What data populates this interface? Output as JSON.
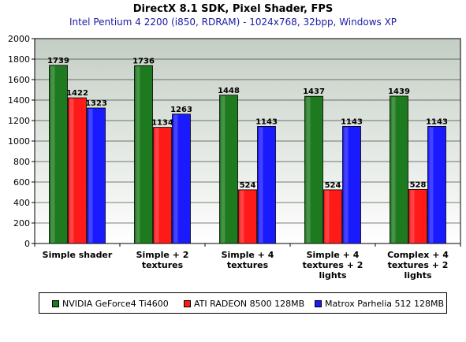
{
  "chart_data": {
    "type": "bar",
    "title": "DirectX 8.1 SDK, Pixel Shader, FPS",
    "subtitle": "Intel Pentium 4 2200 (i850, RDRAM) - 1024x768, 32bpp, Windows XP",
    "categories": [
      [
        "Simple shader"
      ],
      [
        "Simple + 2",
        "textures"
      ],
      [
        "Simple + 4",
        "textures"
      ],
      [
        "Simple + 4",
        "textures + 2",
        "lights"
      ],
      [
        "Complex + 4",
        "textures + 2",
        "lights"
      ]
    ],
    "series": [
      {
        "name": "NVIDIA GeForce4 Ti4600",
        "color": "#1e7a1e",
        "values": [
          1739,
          1736,
          1448,
          1437,
          1439
        ]
      },
      {
        "name": "ATI RADEON 8500 128MB",
        "color": "#ff1a1a",
        "values": [
          1422,
          1134,
          524,
          524,
          528
        ]
      },
      {
        "name": "Matrox Parhelia 512 128MB",
        "color": "#1a1aff",
        "values": [
          1323,
          1263,
          1143,
          1143,
          1143
        ]
      }
    ],
    "ylim": [
      0,
      2000
    ],
    "yticks": [
      0,
      200,
      400,
      600,
      800,
      1000,
      1200,
      1400,
      1600,
      1800,
      2000
    ],
    "grid": true,
    "legend_position": "bottom"
  }
}
